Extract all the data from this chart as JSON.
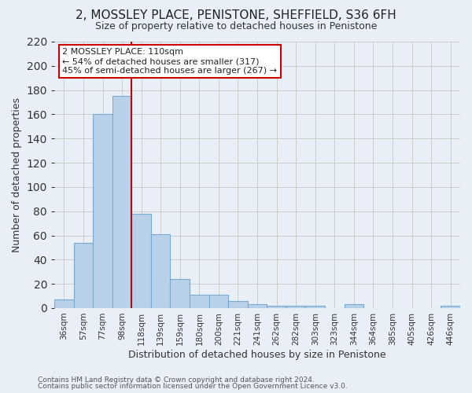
{
  "title": "2, MOSSLEY PLACE, PENISTONE, SHEFFIELD, S36 6FH",
  "subtitle": "Size of property relative to detached houses in Penistone",
  "xlabel": "Distribution of detached houses by size in Penistone",
  "ylabel": "Number of detached properties",
  "bar_labels": [
    "36sqm",
    "57sqm",
    "77sqm",
    "98sqm",
    "118sqm",
    "139sqm",
    "159sqm",
    "180sqm",
    "200sqm",
    "221sqm",
    "241sqm",
    "262sqm",
    "282sqm",
    "303sqm",
    "323sqm",
    "344sqm",
    "364sqm",
    "385sqm",
    "405sqm",
    "426sqm",
    "446sqm"
  ],
  "bar_values": [
    7,
    54,
    160,
    175,
    78,
    61,
    24,
    11,
    11,
    6,
    3,
    2,
    2,
    2,
    0,
    3,
    0,
    0,
    0,
    0,
    2
  ],
  "bar_color": "#b8d0e8",
  "bar_edge_color": "#7aaad0",
  "vline_color": "#cc0000",
  "annotation_title": "2 MOSSLEY PLACE: 110sqm",
  "annotation_line1": "← 54% of detached houses are smaller (317)",
  "annotation_line2": "45% of semi-detached houses are larger (267) →",
  "annotation_box_color": "#ffffff",
  "annotation_box_edgecolor": "#cc0000",
  "ylim": [
    0,
    220
  ],
  "yticks": [
    0,
    20,
    40,
    60,
    80,
    100,
    120,
    140,
    160,
    180,
    200,
    220
  ],
  "bg_color": "#e8eff7",
  "footer1": "Contains HM Land Registry data © Crown copyright and database right 2024.",
  "footer2": "Contains public sector information licensed under the Open Government Licence v3.0."
}
